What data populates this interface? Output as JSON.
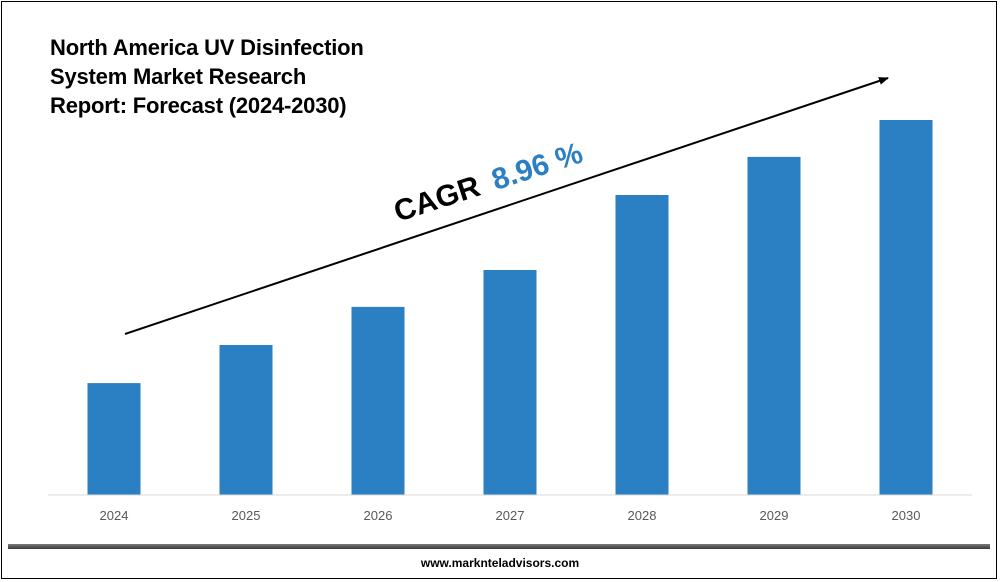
{
  "chart_data": {
    "type": "bar",
    "title_lines": [
      "North America UV Disinfection",
      "System Market Research",
      "Report: Forecast (2024-2030)"
    ],
    "categories": [
      "2024",
      "2025",
      "2026",
      "2027",
      "2028",
      "2029",
      "2030"
    ],
    "values": [
      1.0,
      1.34,
      1.68,
      2.01,
      2.68,
      3.02,
      3.35
    ],
    "xlabel": "",
    "ylabel": "",
    "ylim": [
      0,
      3.6
    ],
    "grid": false,
    "legend": "none",
    "bar_color": "#2b7fc3",
    "annotation": {
      "label": "CAGR",
      "value": "8.96 %",
      "value_color": "#2b7fc3",
      "style": "upward arrow over bars"
    }
  },
  "footer": {
    "website": "www.marknteladvisors.com"
  }
}
